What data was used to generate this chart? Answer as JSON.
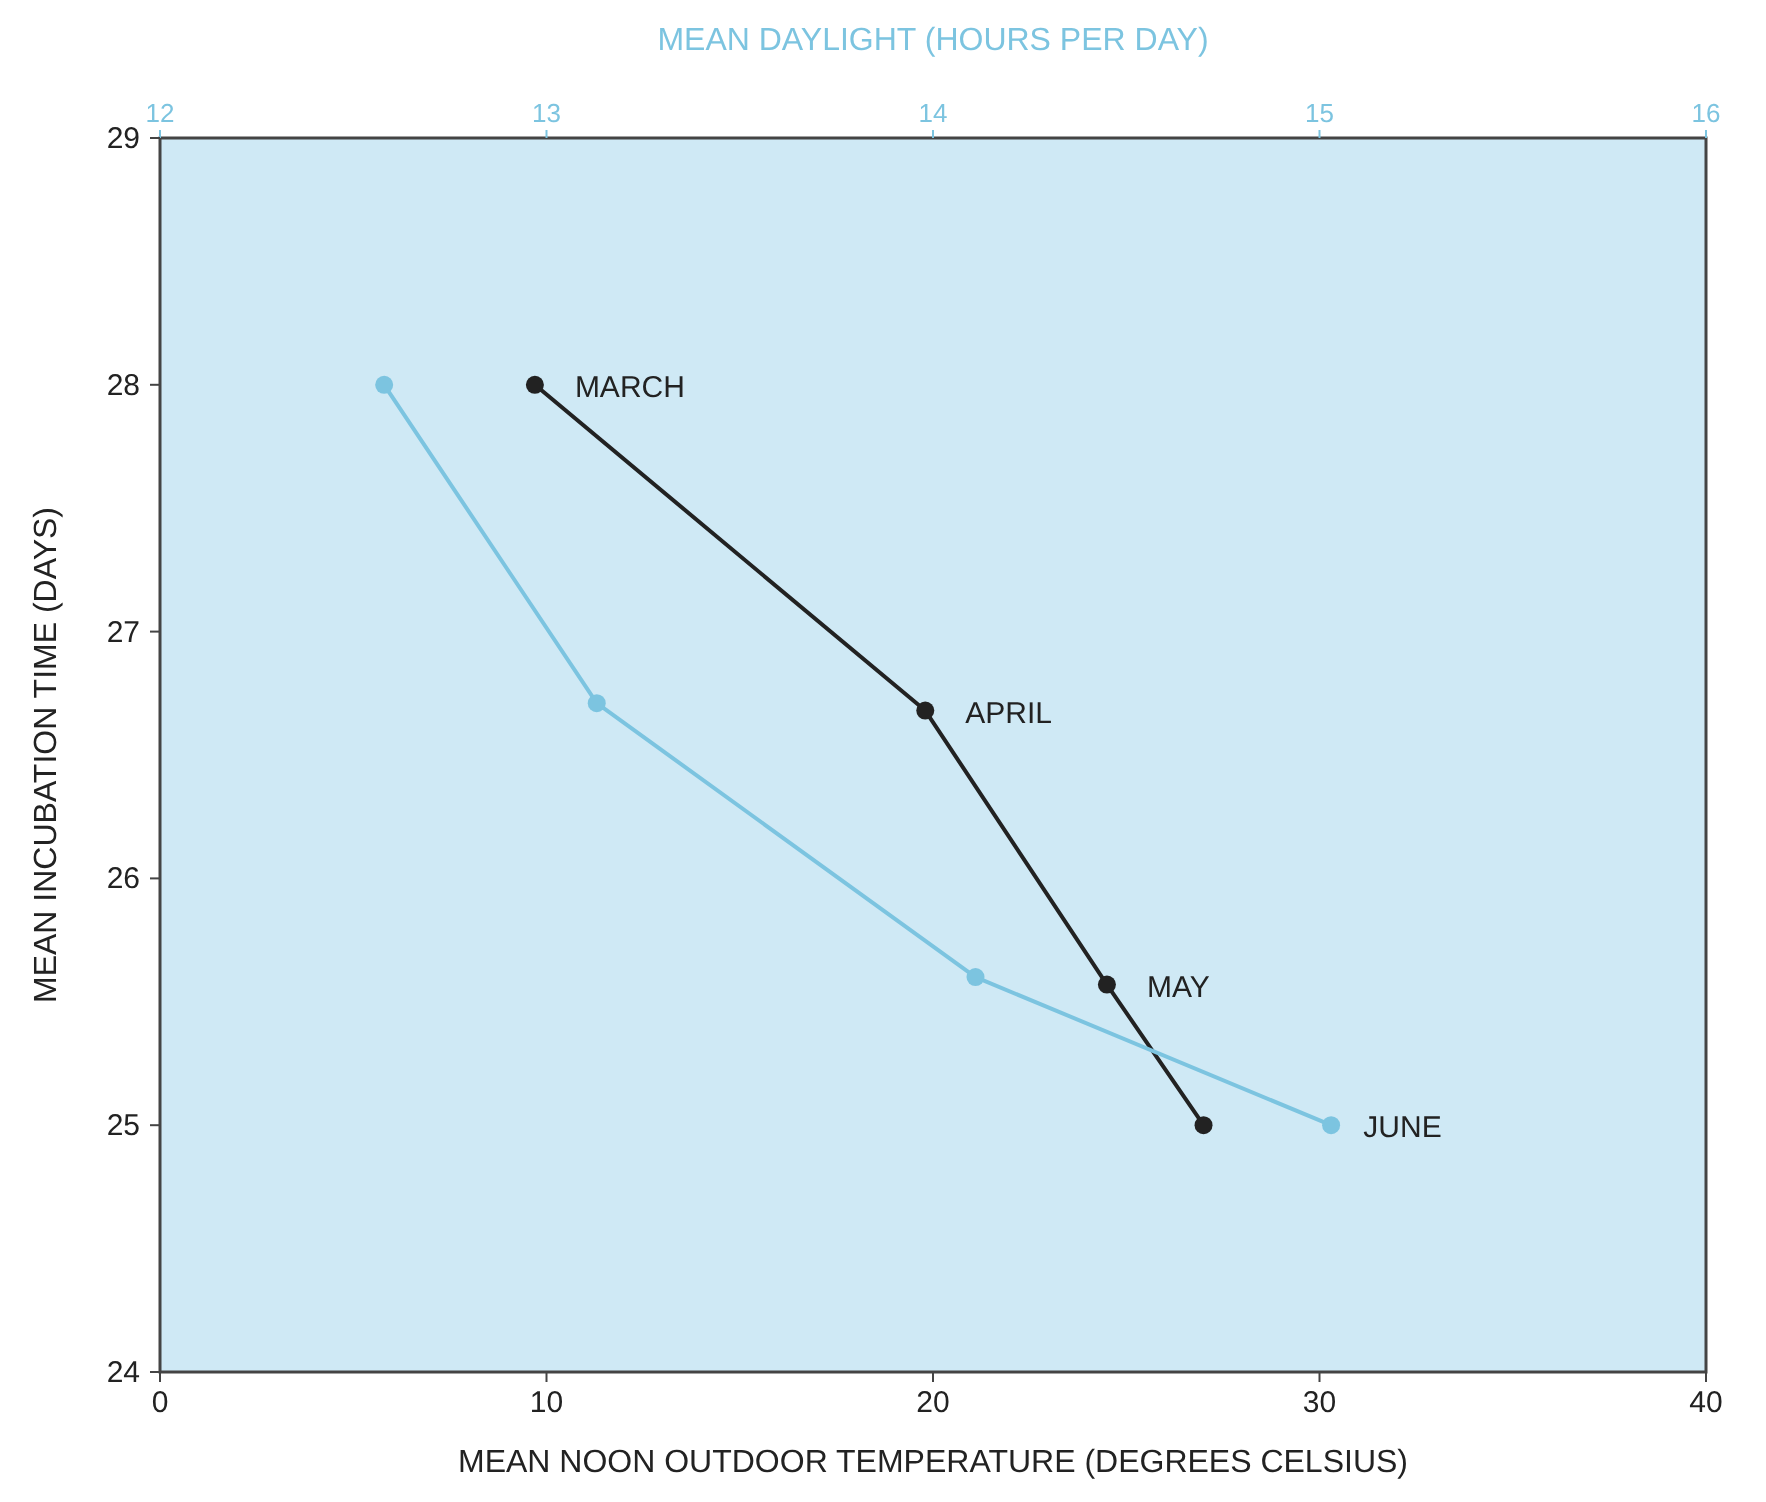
{
  "chart_data": {
    "type": "line",
    "xlabel": "MEAN NOON OUTDOOR TEMPERATURE (DEGREES CELSIUS)",
    "x2label": "MEAN DAYLIGHT (HOURS PER DAY)",
    "ylabel": "MEAN INCUBATION TIME (DAYS)",
    "xlim": [
      0,
      40
    ],
    "xticks": [
      0,
      10,
      20,
      30,
      40
    ],
    "x2lim": [
      12,
      16
    ],
    "x2ticks": [
      12,
      13,
      14,
      15,
      16
    ],
    "ylim": [
      24,
      29
    ],
    "yticks": [
      24,
      25,
      26,
      27,
      28,
      29
    ],
    "marker": "circle",
    "grid": false,
    "series": [
      {
        "color": "#222222",
        "x": [
          9.7,
          19.8,
          24.5,
          27.0
        ],
        "values": [
          28,
          26.68,
          25.57,
          25.0
        ]
      },
      {
        "color": "#7cc4e0",
        "axis": "x2",
        "x": [
          12.58,
          13.13,
          14.11,
          15.03
        ],
        "values": [
          28,
          26.71,
          25.6,
          25.0
        ]
      }
    ],
    "annotations": [
      {
        "text": "MARCH",
        "x": 9.7,
        "y": 28
      },
      {
        "text": "APRIL",
        "x": 19.8,
        "y": 26.68
      },
      {
        "text": "MAY",
        "x": 24.5,
        "y": 25.57
      },
      {
        "text": "JUNE",
        "x": 30.1,
        "y": 25.0
      }
    ]
  }
}
